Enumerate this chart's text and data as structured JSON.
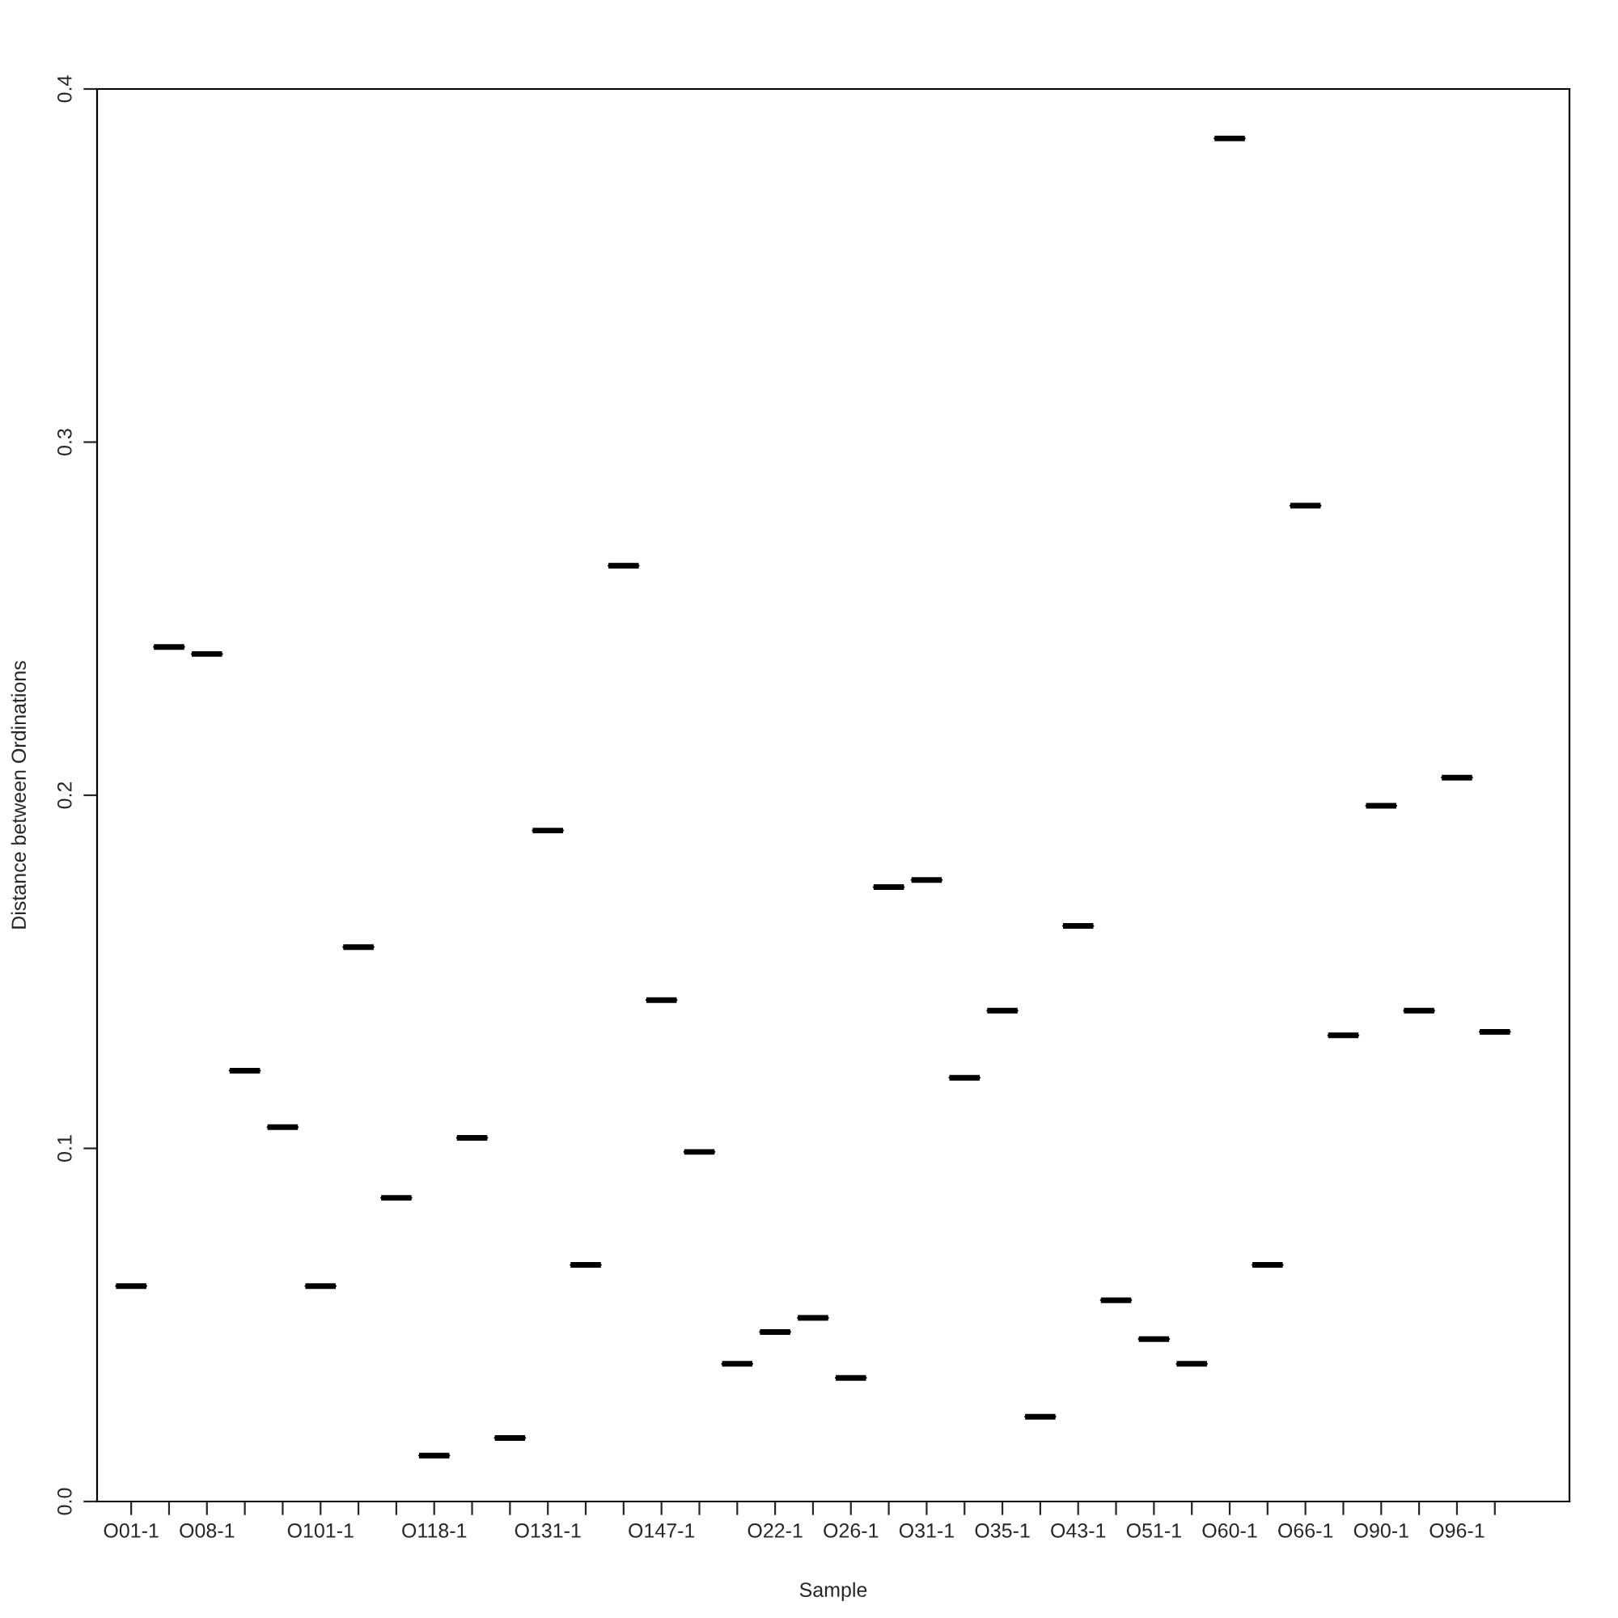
{
  "chart_data": {
    "type": "box",
    "xlabel": "Sample",
    "ylabel": "Distance between Ordinations",
    "categories": [
      "O01-1",
      null,
      "O08-1",
      null,
      null,
      "O101-1",
      null,
      null,
      "O118-1",
      null,
      null,
      "O131-1",
      null,
      null,
      "O147-1",
      null,
      null,
      "O22-1",
      null,
      "O26-1",
      null,
      "O31-1",
      null,
      "O35-1",
      null,
      "O43-1",
      null,
      "O51-1",
      null,
      "O60-1",
      null,
      "O66-1",
      null,
      "O90-1",
      null,
      "O96-1",
      null
    ],
    "boxes": [
      {
        "low": 0.061,
        "q1": 0.061,
        "median": 0.061,
        "q3": 0.061,
        "high": 0.061
      },
      {
        "low": 0.242,
        "q1": 0.242,
        "median": 0.242,
        "q3": 0.242,
        "high": 0.242
      },
      {
        "low": 0.24,
        "q1": 0.24,
        "median": 0.24,
        "q3": 0.24,
        "high": 0.24
      },
      {
        "low": 0.122,
        "q1": 0.122,
        "median": 0.122,
        "q3": 0.122,
        "high": 0.122
      },
      {
        "low": 0.106,
        "q1": 0.106,
        "median": 0.106,
        "q3": 0.106,
        "high": 0.106
      },
      {
        "low": 0.061,
        "q1": 0.061,
        "median": 0.061,
        "q3": 0.061,
        "high": 0.061
      },
      {
        "low": 0.157,
        "q1": 0.157,
        "median": 0.157,
        "q3": 0.157,
        "high": 0.157
      },
      {
        "low": 0.086,
        "q1": 0.086,
        "median": 0.086,
        "q3": 0.086,
        "high": 0.086
      },
      {
        "low": 0.013,
        "q1": 0.013,
        "median": 0.013,
        "q3": 0.013,
        "high": 0.013
      },
      {
        "low": 0.103,
        "q1": 0.103,
        "median": 0.103,
        "q3": 0.103,
        "high": 0.103
      },
      {
        "low": 0.018,
        "q1": 0.018,
        "median": 0.018,
        "q3": 0.018,
        "high": 0.018
      },
      {
        "low": 0.19,
        "q1": 0.19,
        "median": 0.19,
        "q3": 0.19,
        "high": 0.19
      },
      {
        "low": 0.067,
        "q1": 0.067,
        "median": 0.067,
        "q3": 0.067,
        "high": 0.067
      },
      {
        "low": 0.265,
        "q1": 0.265,
        "median": 0.265,
        "q3": 0.265,
        "high": 0.265
      },
      {
        "low": 0.142,
        "q1": 0.142,
        "median": 0.142,
        "q3": 0.142,
        "high": 0.142
      },
      {
        "low": 0.099,
        "q1": 0.099,
        "median": 0.099,
        "q3": 0.099,
        "high": 0.099
      },
      {
        "low": 0.039,
        "q1": 0.039,
        "median": 0.039,
        "q3": 0.039,
        "high": 0.039
      },
      {
        "low": 0.048,
        "q1": 0.048,
        "median": 0.048,
        "q3": 0.048,
        "high": 0.048
      },
      {
        "low": 0.052,
        "q1": 0.052,
        "median": 0.052,
        "q3": 0.052,
        "high": 0.052
      },
      {
        "low": 0.035,
        "q1": 0.035,
        "median": 0.035,
        "q3": 0.035,
        "high": 0.035
      },
      {
        "low": 0.174,
        "q1": 0.174,
        "median": 0.174,
        "q3": 0.174,
        "high": 0.174
      },
      {
        "low": 0.176,
        "q1": 0.176,
        "median": 0.176,
        "q3": 0.176,
        "high": 0.176
      },
      {
        "low": 0.12,
        "q1": 0.12,
        "median": 0.12,
        "q3": 0.12,
        "high": 0.12
      },
      {
        "low": 0.139,
        "q1": 0.139,
        "median": 0.139,
        "q3": 0.139,
        "high": 0.139
      },
      {
        "low": 0.024,
        "q1": 0.024,
        "median": 0.024,
        "q3": 0.024,
        "high": 0.024
      },
      {
        "low": 0.163,
        "q1": 0.163,
        "median": 0.163,
        "q3": 0.163,
        "high": 0.163
      },
      {
        "low": 0.057,
        "q1": 0.057,
        "median": 0.057,
        "q3": 0.057,
        "high": 0.057
      },
      {
        "low": 0.046,
        "q1": 0.046,
        "median": 0.046,
        "q3": 0.046,
        "high": 0.046
      },
      {
        "low": 0.039,
        "q1": 0.039,
        "median": 0.039,
        "q3": 0.039,
        "high": 0.039
      },
      {
        "low": 0.386,
        "q1": 0.386,
        "median": 0.386,
        "q3": 0.386,
        "high": 0.386
      },
      {
        "low": 0.067,
        "q1": 0.067,
        "median": 0.067,
        "q3": 0.067,
        "high": 0.067
      },
      {
        "low": 0.282,
        "q1": 0.282,
        "median": 0.282,
        "q3": 0.282,
        "high": 0.282
      },
      {
        "low": 0.132,
        "q1": 0.132,
        "median": 0.132,
        "q3": 0.132,
        "high": 0.132
      },
      {
        "low": 0.197,
        "q1": 0.197,
        "median": 0.197,
        "q3": 0.197,
        "high": 0.197
      },
      {
        "low": 0.139,
        "q1": 0.139,
        "median": 0.139,
        "q3": 0.139,
        "high": 0.139
      },
      {
        "low": 0.205,
        "q1": 0.205,
        "median": 0.205,
        "q3": 0.205,
        "high": 0.205
      },
      {
        "low": 0.133,
        "q1": 0.133,
        "median": 0.133,
        "q3": 0.133,
        "high": 0.133
      }
    ],
    "color": "#000000",
    "ylim": [
      0,
      0.4
    ],
    "yticks": [
      {
        "value": 0,
        "label": "0.0"
      },
      0.1,
      0.2,
      0.3,
      0.4
    ],
    "grid": false,
    "legend": false
  }
}
